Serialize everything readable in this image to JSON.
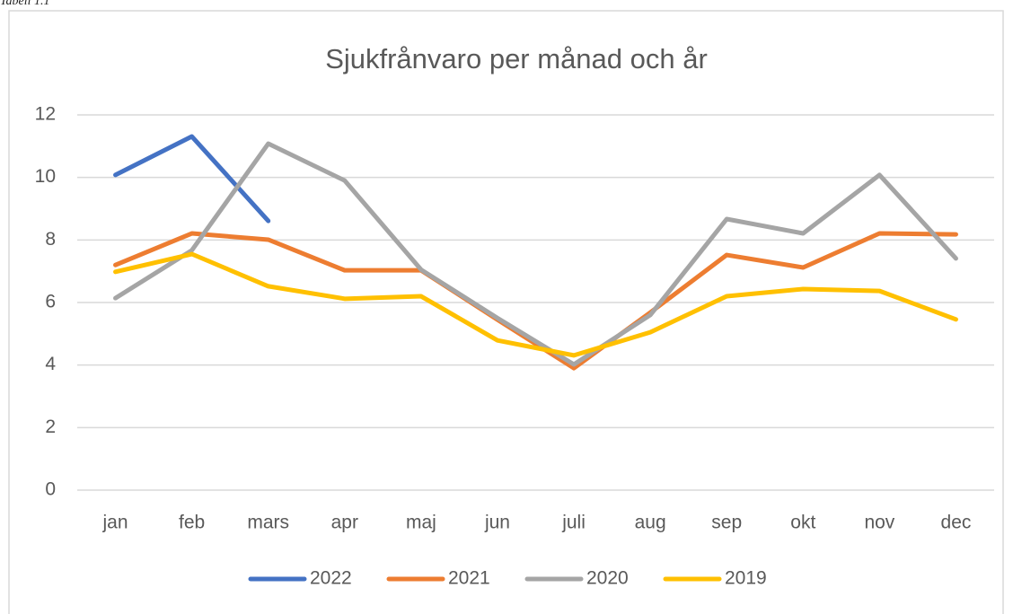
{
  "caption": "Tabell 1.1",
  "chart_data": {
    "type": "line",
    "title": "Sjukfrånvaro per månad och år",
    "categories": [
      "jan",
      "feb",
      "mars",
      "apr",
      "maj",
      "jun",
      "juli",
      "aug",
      "sep",
      "okt",
      "nov",
      "dec"
    ],
    "series": [
      {
        "name": "2022",
        "color": "#4472c4",
        "values": [
          10.08,
          11.31,
          8.61,
          null,
          null,
          null,
          null,
          null,
          null,
          null,
          null,
          null
        ]
      },
      {
        "name": "2021",
        "color": "#ed7d31",
        "values": [
          7.2,
          8.21,
          8.01,
          7.03,
          7.03,
          5.45,
          3.9,
          5.68,
          7.52,
          7.12,
          8.21,
          8.18
        ]
      },
      {
        "name": "2020",
        "color": "#a5a5a5",
        "values": [
          6.14,
          7.67,
          11.08,
          9.9,
          7.05,
          5.5,
          4.02,
          5.6,
          8.67,
          8.21,
          10.08,
          7.41
        ]
      },
      {
        "name": "2019",
        "color": "#ffc000",
        "values": [
          6.98,
          7.55,
          6.52,
          6.12,
          6.2,
          4.79,
          4.31,
          5.05,
          6.2,
          6.43,
          6.37,
          5.46
        ]
      }
    ],
    "ylim": [
      0,
      12
    ],
    "yticks": [
      0,
      2,
      4,
      6,
      8,
      10,
      12
    ],
    "grid": true,
    "legend": "bottom"
  }
}
